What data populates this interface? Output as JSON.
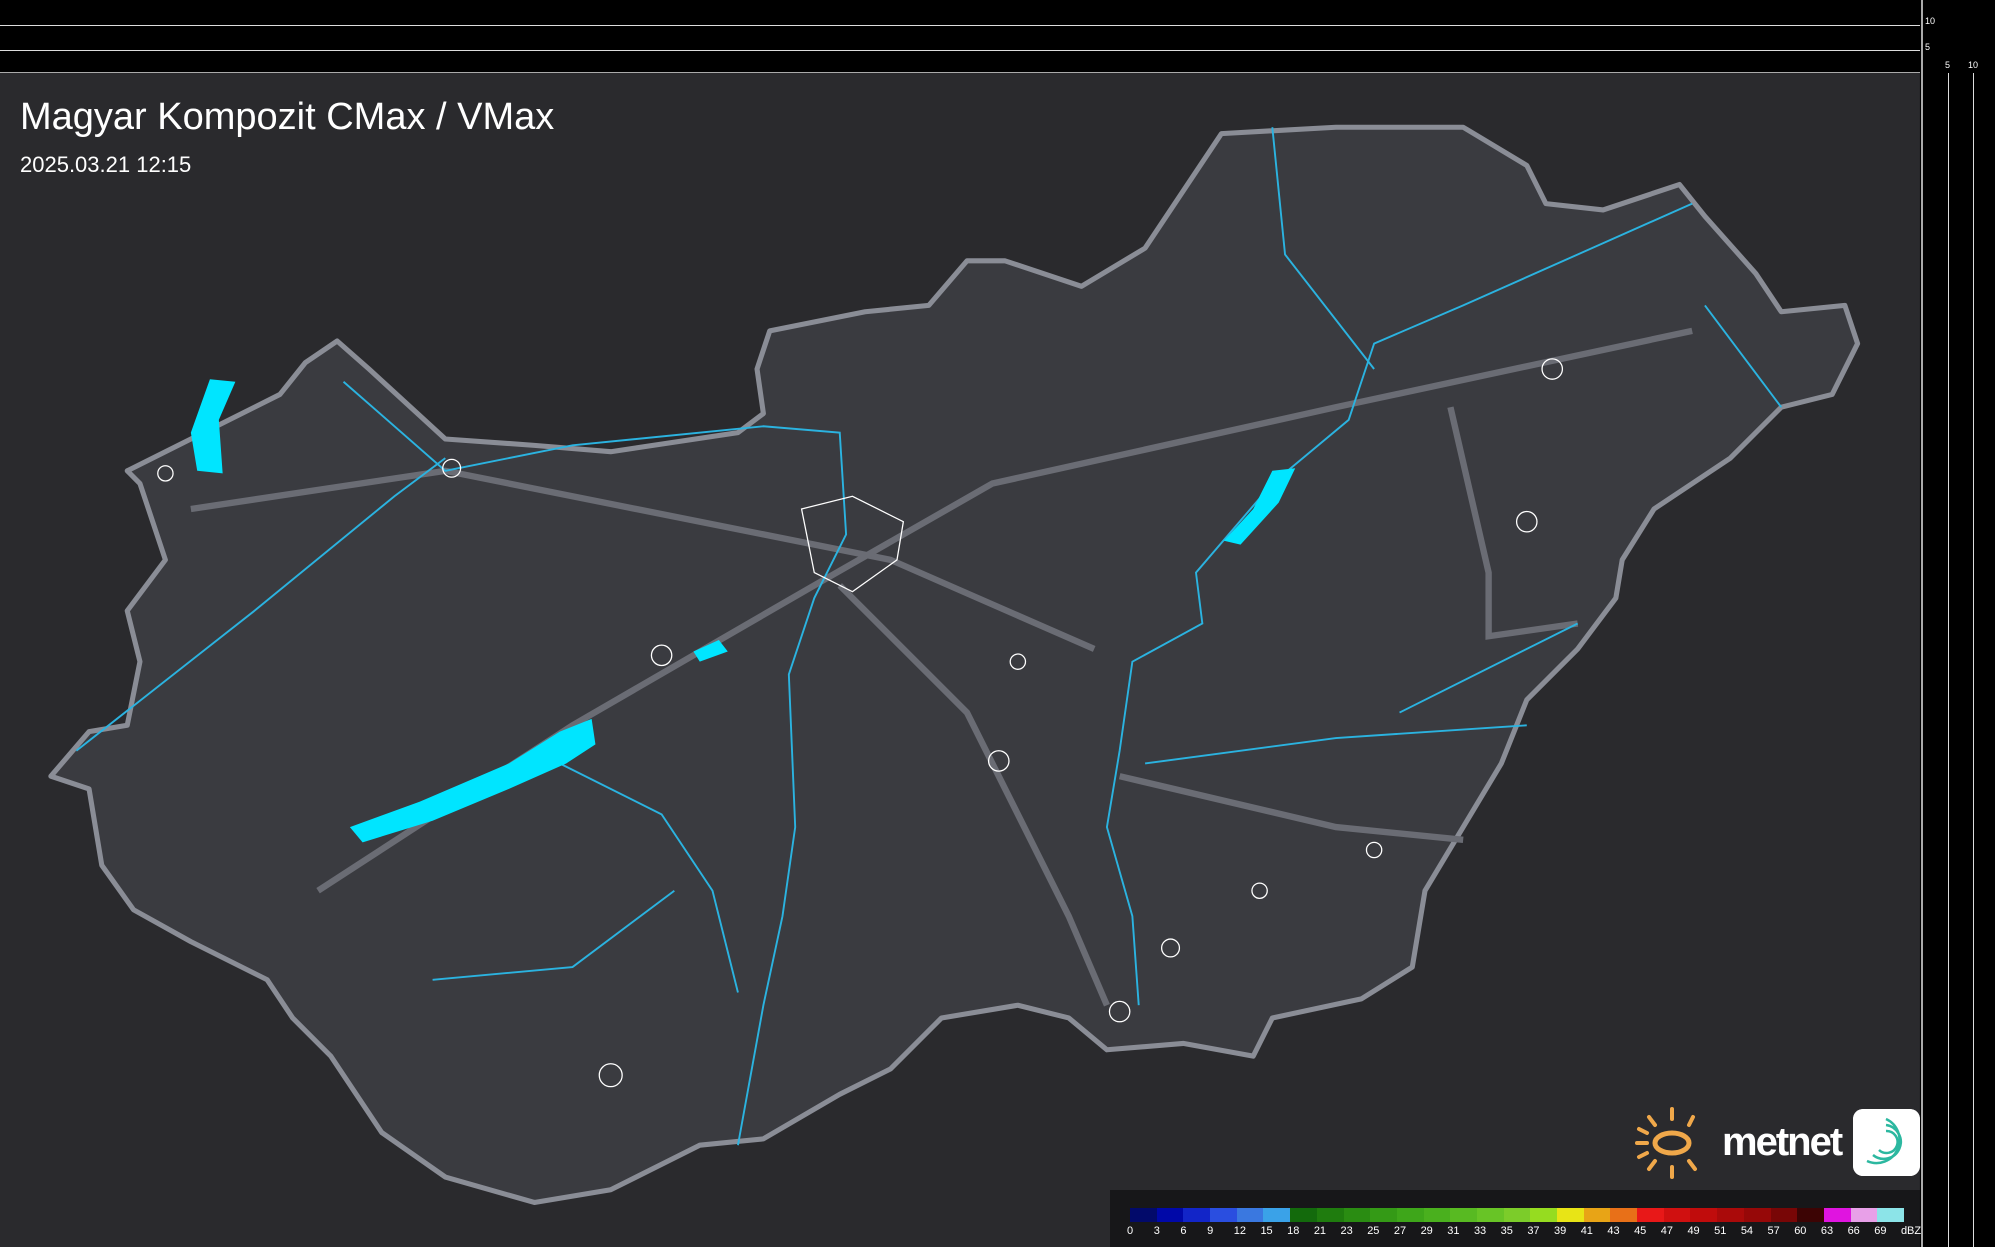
{
  "title": "Magyar Kompozit CMax / VMax",
  "timestamp": "2025.03.21 12:15",
  "scale_ticks": {
    "right_top": "10",
    "right_mid": "5",
    "bottom_left": "5",
    "bottom_right": "10"
  },
  "legend": {
    "unit": "dBZ",
    "labels": [
      "0",
      "3",
      "6",
      "9",
      "12",
      "15",
      "18",
      "21",
      "23",
      "25",
      "27",
      "29",
      "31",
      "33",
      "35",
      "37",
      "39",
      "41",
      "43",
      "45",
      "47",
      "49",
      "51",
      "54",
      "57",
      "60",
      "63",
      "66",
      "69"
    ],
    "colors": [
      "#020a6a",
      "#0008a8",
      "#1225c8",
      "#2a4ee0",
      "#3a78e0",
      "#3aa2e8",
      "#136a0c",
      "#1f7c0e",
      "#2a8c12",
      "#349a16",
      "#3ea61a",
      "#4ab01e",
      "#58ba22",
      "#68c426",
      "#7ccc2a",
      "#96dc20",
      "#e8e416",
      "#e8a416",
      "#e87018",
      "#e81818",
      "#d01010",
      "#c00c0c",
      "#aa0a0a",
      "#960808",
      "#780606",
      "#3c0404",
      "#e014e0",
      "#e8a0e8",
      "#8ce4e8"
    ]
  },
  "brand": {
    "name": "metnet",
    "sun_color": "#f0a84a",
    "teal": "#2cb8a0"
  },
  "colors": {
    "lakes": "#00e5ff",
    "rivers": "#2bb3e0",
    "border": "#8a8d96",
    "land": "#3a3b40",
    "background": "#2a2a2d"
  }
}
